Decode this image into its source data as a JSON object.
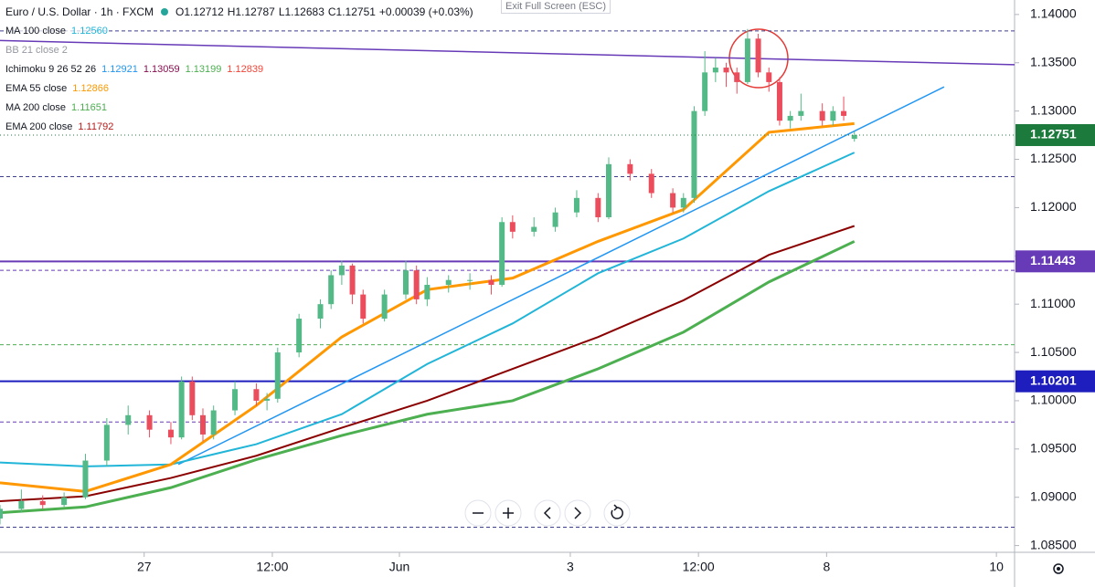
{
  "chart_data": {
    "type": "candlestick",
    "title": "Euro / U.S. Dollar · 1h · FXCM",
    "header_values": [
      "O1.12712",
      "H1.12787",
      "L1.12683",
      "C1.12751",
      "+0.00039 (+0.03%)"
    ],
    "exit_button": "Exit Full Screen (ESC)",
    "up_color": "#53b987",
    "down_color": "#eb4d5c",
    "x": [
      0,
      2,
      4,
      6,
      8,
      10,
      12,
      14,
      16,
      17,
      18,
      19,
      20,
      22,
      24,
      25,
      26,
      28,
      30,
      31,
      32,
      33,
      34,
      36,
      38,
      39,
      40,
      42,
      44,
      46,
      47,
      48,
      50,
      52,
      54,
      56,
      57,
      59,
      61,
      63,
      64,
      65,
      66,
      67,
      68,
      69,
      70,
      71,
      72,
      73,
      74,
      75,
      77,
      78,
      79,
      80
    ],
    "open": [
      1.0878,
      1.0888,
      1.0896,
      1.0892,
      1.09,
      1.0938,
      1.0975,
      1.0985,
      1.097,
      1.0962,
      1.102,
      1.0985,
      1.0965,
      1.099,
      1.1012,
      1.1,
      1.1002,
      1.105,
      1.1085,
      1.11,
      1.113,
      1.114,
      1.111,
      1.1085,
      1.111,
      1.1135,
      1.1105,
      1.112,
      1.1125,
      1.1125,
      1.112,
      1.1185,
      1.1175,
      1.118,
      1.1195,
      1.121,
      1.119,
      1.1245,
      1.1235,
      1.1215,
      1.12,
      1.121,
      1.13,
      1.134,
      1.1345,
      1.134,
      1.133,
      1.1375,
      1.134,
      1.133,
      1.129,
      1.1295,
      1.13,
      1.129,
      1.13,
      1.12712
    ],
    "high": [
      1.0892,
      1.0908,
      1.0902,
      1.0905,
      1.0945,
      1.0982,
      1.0995,
      1.099,
      1.0978,
      1.1025,
      1.1025,
      1.0992,
      1.0995,
      1.102,
      1.1018,
      1.1008,
      1.1055,
      1.109,
      1.1105,
      1.1135,
      1.1145,
      1.1142,
      1.1115,
      1.1115,
      1.1145,
      1.114,
      1.1128,
      1.113,
      1.1132,
      1.113,
      1.119,
      1.1192,
      1.119,
      1.12,
      1.1218,
      1.1215,
      1.1252,
      1.125,
      1.124,
      1.122,
      1.1215,
      1.1305,
      1.1362,
      1.1355,
      1.135,
      1.1345,
      1.1385,
      1.138,
      1.1345,
      1.1335,
      1.13,
      1.1318,
      1.1308,
      1.1305,
      1.1315,
      1.12787
    ],
    "low": [
      1.0872,
      1.0884,
      1.0888,
      1.089,
      1.0898,
      1.0932,
      1.0965,
      1.0962,
      1.0955,
      1.096,
      1.098,
      1.0958,
      1.096,
      1.0985,
      1.0995,
      1.099,
      1.0998,
      1.1045,
      1.1075,
      1.1095,
      1.112,
      1.11,
      1.108,
      1.1082,
      1.1105,
      1.11,
      1.1098,
      1.1112,
      1.1115,
      1.111,
      1.1118,
      1.1168,
      1.117,
      1.1175,
      1.119,
      1.1185,
      1.1188,
      1.1228,
      1.121,
      1.1195,
      1.1195,
      1.1205,
      1.1295,
      1.133,
      1.1325,
      1.1318,
      1.1328,
      1.1335,
      1.132,
      1.1285,
      1.1282,
      1.129,
      1.1285,
      1.1285,
      1.129,
      1.12683
    ],
    "close": [
      1.0888,
      1.0896,
      1.0892,
      1.09,
      1.0938,
      1.0975,
      1.0985,
      1.097,
      1.0962,
      1.102,
      1.0985,
      1.0965,
      1.099,
      1.1012,
      1.1,
      1.1002,
      1.105,
      1.1085,
      1.11,
      1.113,
      1.114,
      1.111,
      1.1085,
      1.111,
      1.1135,
      1.1105,
      1.112,
      1.1125,
      1.1125,
      1.112,
      1.1185,
      1.1175,
      1.118,
      1.1195,
      1.121,
      1.119,
      1.1245,
      1.1235,
      1.1215,
      1.12,
      1.121,
      1.13,
      1.134,
      1.1345,
      1.134,
      1.133,
      1.1375,
      1.134,
      1.133,
      1.129,
      1.1295,
      1.13,
      1.129,
      1.13,
      1.1295,
      1.12751
    ],
    "xlim": [
      0,
      95
    ],
    "xticks": [
      {
        "value": 13.5,
        "label": "27"
      },
      {
        "value": 25.5,
        "label": "12:00"
      },
      {
        "value": 37.4,
        "label": "Jun"
      },
      {
        "value": 53.4,
        "label": "3"
      },
      {
        "value": 65.4,
        "label": "12:00"
      },
      {
        "value": 77.4,
        "label": "8"
      },
      {
        "value": 93.3,
        "label": "10"
      }
    ],
    "ylim": [
      1.0843,
      1.1415
    ],
    "yticks": [
      {
        "value": 1.085,
        "label": "1.08500"
      },
      {
        "value": 1.09,
        "label": "1.09000"
      },
      {
        "value": 1.095,
        "label": "1.09500"
      },
      {
        "value": 1.1,
        "label": "1.10000"
      },
      {
        "value": 1.105,
        "label": "1.10500"
      },
      {
        "value": 1.11,
        "label": "1.11000"
      },
      {
        "value": 1.115,
        "label": "1.11500"
      },
      {
        "value": 1.12,
        "label": "1.12000"
      },
      {
        "value": 1.125,
        "label": "1.12500"
      },
      {
        "value": 1.13,
        "label": "1.13000"
      },
      {
        "value": 1.135,
        "label": "1.13500"
      },
      {
        "value": 1.14,
        "label": "1.14000"
      }
    ],
    "line_x": [
      0,
      8,
      16,
      24,
      32,
      40,
      48,
      56,
      64,
      72,
      80
    ],
    "indicators": [
      {
        "name": "MA 100 close",
        "values": [
          "1.12560"
        ],
        "colors": [
          "#21b5d8"
        ],
        "color": "#21b5d8",
        "width": 2,
        "y": [
          1.0936,
          1.0932,
          1.0934,
          1.0955,
          1.0986,
          1.1038,
          1.108,
          1.1132,
          1.1168,
          1.1217,
          1.1257
        ]
      },
      {
        "name": "BB 21 close 2",
        "values": [],
        "colors": []
      },
      {
        "name": "Ichimoku 9 26 52 26",
        "values": [
          "1.12921",
          "1.13059",
          "1.13199",
          "1.12839"
        ],
        "colors": [
          "#2196f3",
          "#880e4f",
          "#4caf50",
          "#f44336"
        ]
      },
      {
        "name": "EMA 55 close",
        "values": [
          "1.12866"
        ],
        "colors": [
          "#ff9800"
        ],
        "color": "#ff9800",
        "width": 3,
        "y": [
          1.0915,
          1.0906,
          1.0934,
          1.0995,
          1.1066,
          1.1115,
          1.1127,
          1.1165,
          1.1198,
          1.1278,
          1.1287
        ]
      },
      {
        "name": "MA 200 close",
        "values": [
          "1.11651"
        ],
        "colors": [
          "#4caf50"
        ],
        "color": "#4caf50",
        "width": 3,
        "y": [
          1.0884,
          1.089,
          1.091,
          1.0939,
          1.0964,
          1.0986,
          1.1,
          1.1033,
          1.1071,
          1.1123,
          1.1165
        ]
      },
      {
        "name": "EMA 200 close",
        "values": [
          "1.11792"
        ],
        "colors": [
          "#b71c1c"
        ],
        "color": "#8b0000",
        "width": 2,
        "y": [
          1.0896,
          1.0901,
          1.092,
          1.0943,
          1.0972,
          1.1,
          1.1033,
          1.1066,
          1.1104,
          1.1151,
          1.1181
        ]
      }
    ],
    "trend_lines": [
      {
        "color": "#673ab7",
        "x": [
          0,
          95
        ],
        "values": [
          1.1373,
          1.1348
        ]
      },
      {
        "color": "#2196f3",
        "x": [
          16.7,
          88.4
        ],
        "values": [
          1.0934,
          1.1325
        ]
      }
    ],
    "levels": [
      {
        "value": 1.1383,
        "color": "#3f3f8f",
        "style": "dashed"
      },
      {
        "value": 1.1232,
        "color": "#3f3f8f",
        "style": "dashed"
      },
      {
        "value": 1.11443,
        "label": "1.11443",
        "color": "#673ab7",
        "style": "solid"
      },
      {
        "value": 1.1135,
        "color": "#673ab7",
        "style": "dashed"
      },
      {
        "value": 1.1058,
        "color": "#4caf50",
        "style": "dashed"
      },
      {
        "value": 1.10201,
        "label": "1.10201",
        "color": "#1e1ebe",
        "style": "solid"
      },
      {
        "value": 1.0978,
        "color": "#673ab7",
        "style": "dashed"
      },
      {
        "value": 1.0869,
        "color": "#3f3f8f",
        "style": "dashed"
      }
    ],
    "last_price": {
      "value": 1.12751,
      "label": "1.12751",
      "color": "#1b7a3c"
    }
  }
}
